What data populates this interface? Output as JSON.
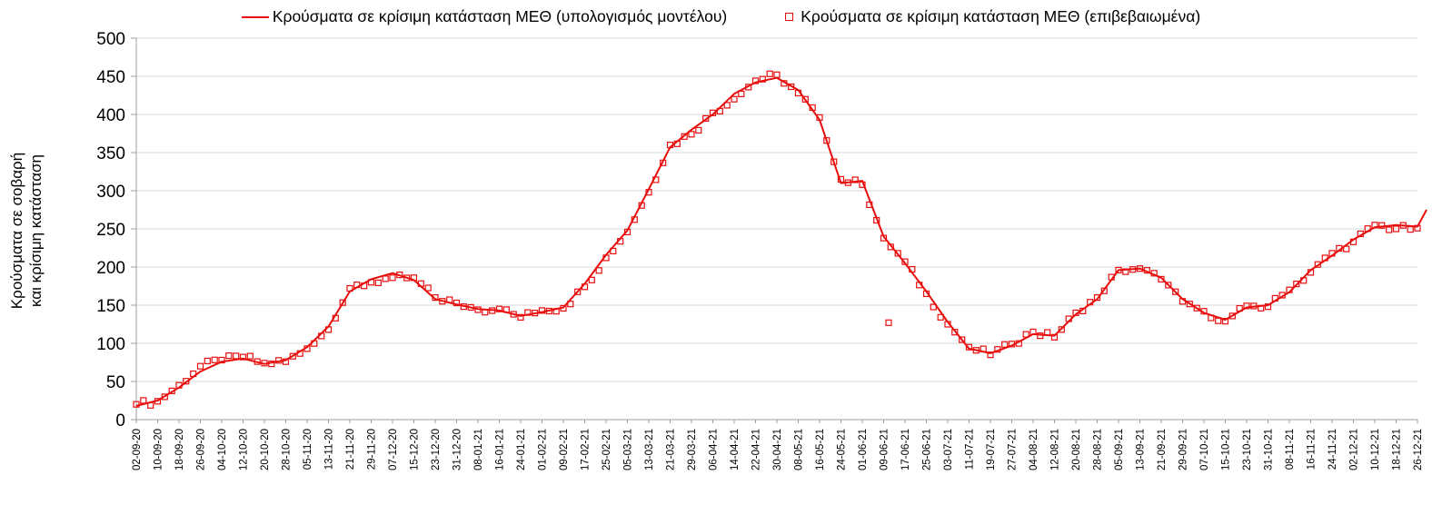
{
  "figure": {
    "y_axis_title_line1": "Κρούσματα σε σοβαρή",
    "y_axis_title_line2": "και κρίσιμη κατάσταση"
  },
  "legend": {
    "model_label": "Κρούσματα σε κρίσιμη κατάσταση ΜΕΘ (υπολογισμός μοντέλου)",
    "confirmed_label": "Κρούσματα σε κρίσιμη κατάσταση ΜΕΘ (επιβεβαιωμένα)"
  },
  "colors": {
    "series_red": "#e80c0c",
    "gridline": "#d9d9d9",
    "axis": "#9e9e9e",
    "text": "#000000"
  },
  "chart_data": {
    "type": "line",
    "title": "",
    "xlabel": "",
    "ylabel": "Κρούσματα σε σοβαρή και κρίσιμη κατάσταση",
    "ylim": [
      0,
      500
    ],
    "y_tick_step": 50,
    "grid": "horizontal",
    "legend_position": "top",
    "categories": [
      "02-09-20",
      "10-09-20",
      "18-09-20",
      "26-09-20",
      "04-10-20",
      "12-10-20",
      "20-10-20",
      "28-10-20",
      "05-11-20",
      "13-11-20",
      "21-11-20",
      "29-11-20",
      "07-12-20",
      "15-12-20",
      "23-12-20",
      "31-12-20",
      "08-01-21",
      "16-01-21",
      "24-01-21",
      "01-02-21",
      "09-02-21",
      "17-02-21",
      "25-02-21",
      "05-03-21",
      "13-03-21",
      "21-03-21",
      "29-03-21",
      "06-04-21",
      "14-04-21",
      "22-04-21",
      "30-04-21",
      "08-05-21",
      "16-05-21",
      "24-05-21",
      "01-06-21",
      "09-06-21",
      "17-06-21",
      "25-06-21",
      "03-07-21",
      "11-07-21",
      "19-07-21",
      "27-07-21",
      "04-08-21",
      "12-08-21",
      "20-08-21",
      "28-08-21",
      "05-09-21",
      "13-09-21",
      "21-09-21",
      "29-09-21",
      "07-10-21",
      "15-10-21",
      "23-10-21",
      "31-10-21",
      "08-11-21",
      "16-11-21",
      "24-11-21",
      "02-12-21",
      "10-12-21",
      "18-12-21",
      "26-12-21"
    ],
    "series": [
      {
        "name": "Κρούσματα σε κρίσιμη κατάσταση ΜΕΘ (υπολογισμός μοντέλου)",
        "style": "line",
        "values": [
          18,
          25,
          42,
          63,
          76,
          80,
          73,
          78,
          95,
          122,
          168,
          184,
          192,
          183,
          158,
          151,
          145,
          143,
          136,
          141,
          147,
          178,
          216,
          248,
          302,
          357,
          380,
          400,
          427,
          442,
          448,
          432,
          393,
          310,
          313,
          240,
          205,
          168,
          128,
          93,
          87,
          97,
          112,
          110,
          138,
          158,
          196,
          198,
          186,
          158,
          140,
          131,
          147,
          150,
          167,
          196,
          215,
          236,
          252,
          255,
          253
        ]
      },
      {
        "name": "Κρούσματα σε κρίσιμη κατάσταση ΜΕΘ (επιβεβαιωμένα)",
        "style": "scatter-square",
        "values": [
          20,
          24,
          45,
          70,
          78,
          82,
          74,
          76,
          93,
          118,
          172,
          180,
          186,
          186,
          160,
          153,
          144,
          145,
          134,
          143,
          146,
          174,
          212,
          246,
          298,
          360,
          374,
          402,
          420,
          444,
          452,
          428,
          396,
          315,
          308,
          238,
          207,
          165,
          125,
          95,
          85,
          99,
          115,
          108,
          140,
          160,
          196,
          198,
          184,
          155,
          142,
          129,
          149,
          148,
          170,
          193,
          218,
          233,
          255,
          250,
          251
        ]
      }
    ],
    "outlier": {
      "date": "17-06-21",
      "value": 127
    },
    "model_end_extension": 275
  }
}
